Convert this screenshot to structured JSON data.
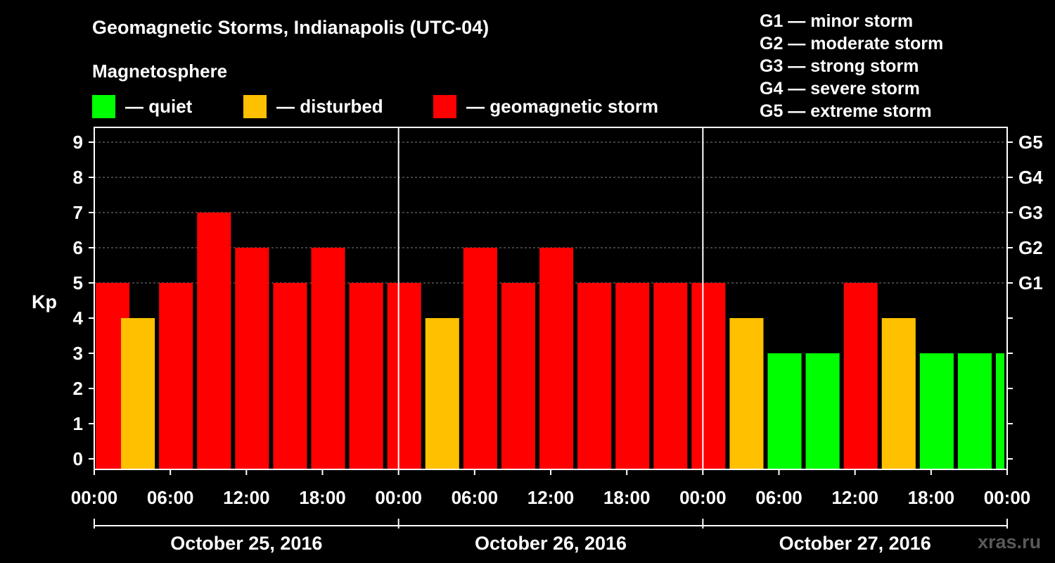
{
  "title": "Geomagnetic Storms, Indianapolis (UTC-04)",
  "magnetosphere_title": "Magnetosphere",
  "legend": [
    {
      "label": "— quiet",
      "color": "#00ff00"
    },
    {
      "label": "— disturbed",
      "color": "#ffc000"
    },
    {
      "label": "— geomagnetic storm",
      "color": "#ff0000"
    }
  ],
  "g_scale": [
    "G1 — minor storm",
    "G2 — moderate storm",
    "G3 — strong storm",
    "G4 — severe storm",
    "G5 — extreme storm"
  ],
  "watermark": "xras.ru",
  "chart_data": {
    "type": "bar",
    "ylabel": "Kp",
    "ylim": [
      0,
      9
    ],
    "yticks": [
      "0",
      "1",
      "2",
      "3",
      "4",
      "5",
      "6",
      "7",
      "8",
      "9"
    ],
    "right_axis_labels": [
      {
        "kp": 5,
        "label": "G1"
      },
      {
        "kp": 6,
        "label": "G2"
      },
      {
        "kp": 7,
        "label": "G3"
      },
      {
        "kp": 8,
        "label": "G4"
      },
      {
        "kp": 9,
        "label": "G5"
      }
    ],
    "xtick_labels": [
      "00:00",
      "06:00",
      "12:00",
      "18:00",
      "00:00",
      "06:00",
      "12:00",
      "18:00",
      "00:00",
      "06:00",
      "12:00",
      "18:00",
      "00:00"
    ],
    "days": [
      "October 25, 2016",
      "October 26, 2016",
      "October 27, 2016"
    ],
    "grid": "dashed at major Kp levels",
    "colors": {
      "quiet": "#00ff00",
      "disturbed": "#ffc000",
      "storm": "#ff0000"
    },
    "bars": [
      {
        "start_hour": 0,
        "kp": 5
      },
      {
        "start_hour": 2,
        "kp": 4
      },
      {
        "start_hour": 5,
        "kp": 5
      },
      {
        "start_hour": 8,
        "kp": 7
      },
      {
        "start_hour": 11,
        "kp": 6
      },
      {
        "start_hour": 14,
        "kp": 5
      },
      {
        "start_hour": 17,
        "kp": 6
      },
      {
        "start_hour": 20,
        "kp": 5
      },
      {
        "start_hour": 23,
        "kp": 5
      },
      {
        "start_hour": 26,
        "kp": 4
      },
      {
        "start_hour": 29,
        "kp": 6
      },
      {
        "start_hour": 32,
        "kp": 5
      },
      {
        "start_hour": 35,
        "kp": 6
      },
      {
        "start_hour": 38,
        "kp": 5
      },
      {
        "start_hour": 41,
        "kp": 5
      },
      {
        "start_hour": 44,
        "kp": 5
      },
      {
        "start_hour": 47,
        "kp": 5
      },
      {
        "start_hour": 50,
        "kp": 4
      },
      {
        "start_hour": 53,
        "kp": 3
      },
      {
        "start_hour": 56,
        "kp": 3
      },
      {
        "start_hour": 59,
        "kp": 5
      },
      {
        "start_hour": 62,
        "kp": 4
      },
      {
        "start_hour": 65,
        "kp": 3
      },
      {
        "start_hour": 68,
        "kp": 3
      },
      {
        "start_hour": 71,
        "kp": 3
      }
    ]
  }
}
